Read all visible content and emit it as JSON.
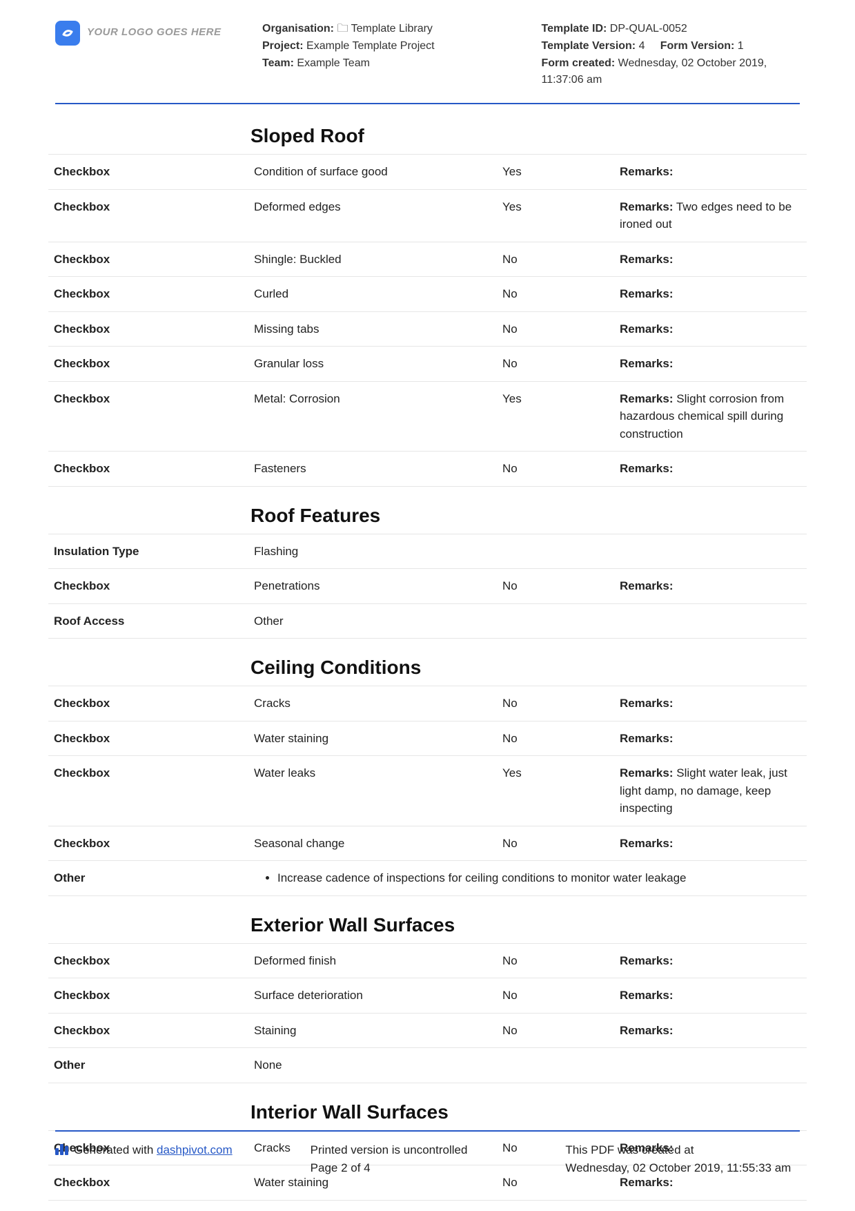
{
  "header": {
    "logo_text": "YOUR LOGO GOES HERE",
    "org_label": "Organisation:",
    "org_icon": "🗀",
    "org_value": "Template Library",
    "project_label": "Project:",
    "project_value": "Example Template Project",
    "team_label": "Team:",
    "team_value": "Example Team",
    "template_id_label": "Template ID:",
    "template_id": "DP-QUAL-0052",
    "template_version_label": "Template Version:",
    "template_version": "4",
    "form_version_label": "Form Version:",
    "form_version": "1",
    "form_created_label": "Form created:",
    "form_created": "Wednesday, 02 October 2019, 11:37:06 am"
  },
  "sections": [
    {
      "title": "Sloped Roof",
      "rows": [
        {
          "label": "Checkbox",
          "desc": "Condition of surface good",
          "val": "Yes",
          "rl": "Remarks:",
          "rv": ""
        },
        {
          "label": "Checkbox",
          "desc": "Deformed edges",
          "val": "Yes",
          "rl": "Remarks:",
          "rv": "Two edges need to be ironed out"
        },
        {
          "label": "Checkbox",
          "desc": "Shingle: Buckled",
          "val": "No",
          "rl": "Remarks:",
          "rv": ""
        },
        {
          "label": "Checkbox",
          "desc": "Curled",
          "val": "No",
          "rl": "Remarks:",
          "rv": ""
        },
        {
          "label": "Checkbox",
          "desc": "Missing tabs",
          "val": "No",
          "rl": "Remarks:",
          "rv": ""
        },
        {
          "label": "Checkbox",
          "desc": "Granular loss",
          "val": "No",
          "rl": "Remarks:",
          "rv": ""
        },
        {
          "label": "Checkbox",
          "desc": "Metal: Corrosion",
          "val": "Yes",
          "rl": "Remarks:",
          "rv": "Slight corrosion from hazardous chemical spill during construction"
        },
        {
          "label": "Checkbox",
          "desc": "Fasteners",
          "val": "No",
          "rl": "Remarks:",
          "rv": ""
        }
      ]
    },
    {
      "title": "Roof Features",
      "rows": [
        {
          "label": "Insulation Type",
          "desc": "Flashing",
          "val": "",
          "rl": "",
          "rv": ""
        },
        {
          "label": "Checkbox",
          "desc": "Penetrations",
          "val": "No",
          "rl": "Remarks:",
          "rv": ""
        },
        {
          "label": "Roof Access",
          "desc": "Other",
          "val": "",
          "rl": "",
          "rv": ""
        }
      ]
    },
    {
      "title": "Ceiling Conditions",
      "rows": [
        {
          "label": "Checkbox",
          "desc": "Cracks",
          "val": "No",
          "rl": "Remarks:",
          "rv": ""
        },
        {
          "label": "Checkbox",
          "desc": "Water staining",
          "val": "No",
          "rl": "Remarks:",
          "rv": ""
        },
        {
          "label": "Checkbox",
          "desc": "Water leaks",
          "val": "Yes",
          "rl": "Remarks:",
          "rv": "Slight water leak, just light damp, no damage, keep inspecting"
        },
        {
          "label": "Checkbox",
          "desc": "Seasonal change",
          "val": "No",
          "rl": "Remarks:",
          "rv": ""
        },
        {
          "label": "Other",
          "bullet": "Increase cadence of inspections for ceiling conditions to monitor water leakage"
        }
      ]
    },
    {
      "title": "Exterior Wall Surfaces",
      "rows": [
        {
          "label": "Checkbox",
          "desc": "Deformed finish",
          "val": "No",
          "rl": "Remarks:",
          "rv": ""
        },
        {
          "label": "Checkbox",
          "desc": "Surface deterioration",
          "val": "No",
          "rl": "Remarks:",
          "rv": ""
        },
        {
          "label": "Checkbox",
          "desc": "Staining",
          "val": "No",
          "rl": "Remarks:",
          "rv": ""
        },
        {
          "label": "Other",
          "desc": "None",
          "val": "",
          "rl": "",
          "rv": ""
        }
      ]
    },
    {
      "title": "Interior Wall Surfaces",
      "rows": [
        {
          "label": "Checkbox",
          "desc": "Cracks",
          "val": "No",
          "rl": "Remarks:",
          "rv": ""
        },
        {
          "label": "Checkbox",
          "desc": "Water staining",
          "val": "No",
          "rl": "Remarks:",
          "rv": ""
        }
      ]
    }
  ],
  "footer": {
    "generated_prefix": "Generated with ",
    "generated_link_text": "dashpivot.com",
    "uncontrolled": "Printed version is uncontrolled",
    "page": "Page 2 of 4",
    "created_prefix": "This PDF was created at",
    "created_value": "Wednesday, 02 October 2019, 11:55:33 am"
  },
  "colors": {
    "rule": "#2658c6",
    "border": "#e6e6e6",
    "logo_bg": "#3a7ded",
    "logo_text": "#9a9a9a"
  }
}
